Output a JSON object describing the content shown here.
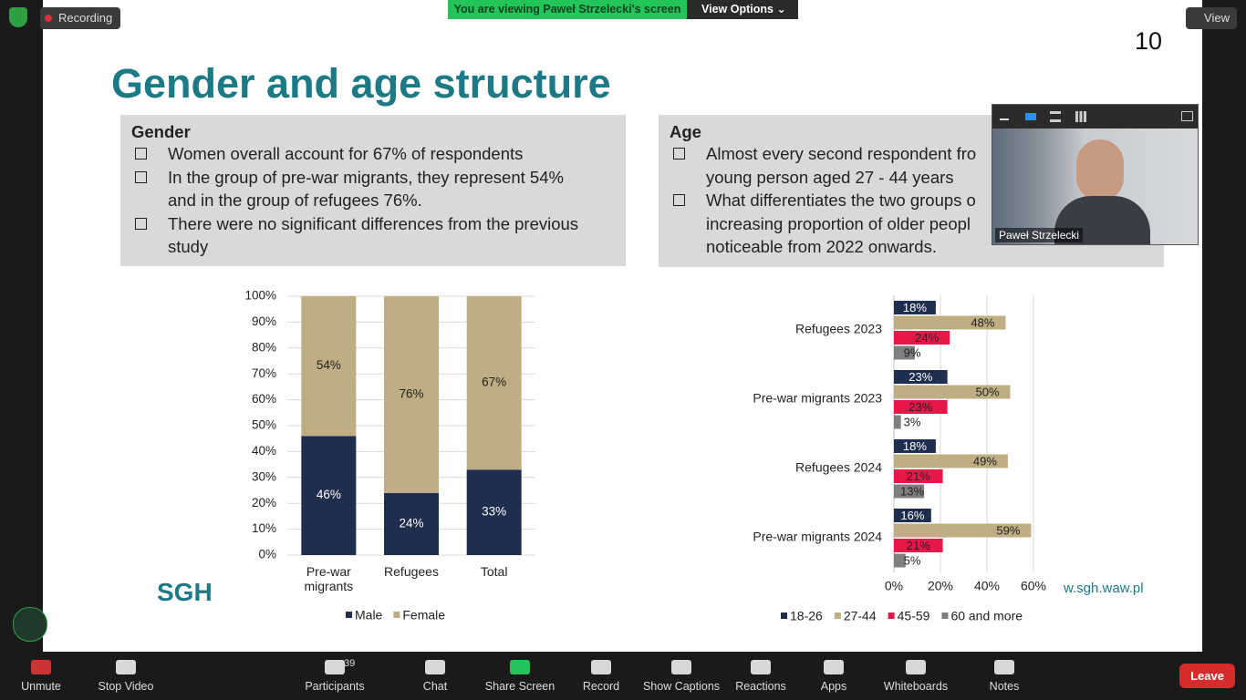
{
  "zoom": {
    "recording": "Recording",
    "banner": "You are viewing Paweł Strzelecki's screen",
    "view_options": "View Options",
    "view": "View",
    "participant_name": "Paweł Strzelecki",
    "participants_count": 39,
    "toolbar": [
      "Unmute",
      "Stop Video",
      "Participants",
      "Chat",
      "Share Screen",
      "Record",
      "Show Captions",
      "Reactions",
      "Apps",
      "Whiteboards",
      "Notes"
    ],
    "leave": "Leave"
  },
  "slide": {
    "page_number": 10,
    "title": "Gender and age structure",
    "gender": {
      "heading": "Gender",
      "bullets": [
        [
          "Women overall account for 67% of respondents"
        ],
        [
          "In the group of pre-war migrants, they represent 54%",
          "and in the group of refugees 76%."
        ],
        [
          "There were no significant differences from the previous",
          "study"
        ]
      ]
    },
    "age": {
      "heading": "Age",
      "bullets": [
        [
          "Almost every second respondent fro",
          "young person aged 27 - 44 years"
        ],
        [
          "What differentiates the two groups o",
          "increasing proportion of older peopl",
          "noticeable from 2022 onwards."
        ]
      ]
    },
    "logo": "SGH",
    "url": "w.sgh.waw.pl"
  },
  "chart_data": [
    {
      "type": "stacked_bar",
      "categories": [
        "Pre-war migrants",
        "Refugees",
        "Total"
      ],
      "series": [
        {
          "name": "Male",
          "color": "#1f2d4e",
          "values": [
            46,
            24,
            33
          ],
          "value_labels": [
            "46%",
            "24%",
            "33%"
          ]
        },
        {
          "name": "Female",
          "color": "#bfad83",
          "values": [
            54,
            76,
            67
          ],
          "value_labels": [
            "54%",
            "76%",
            "67%"
          ]
        }
      ],
      "ylim": [
        0,
        100
      ],
      "yticks": [
        {
          "value": 0,
          "label": "0%"
        },
        {
          "value": 10,
          "label": "10%"
        },
        {
          "value": 20,
          "label": "20%"
        },
        {
          "value": 30,
          "label": "30%"
        },
        {
          "value": 40,
          "label": "40%"
        },
        {
          "value": 50,
          "label": "50%"
        },
        {
          "value": 60,
          "label": "60%"
        },
        {
          "value": 70,
          "label": "70%"
        },
        {
          "value": 80,
          "label": "80%"
        },
        {
          "value": 90,
          "label": "90%"
        },
        {
          "value": 100,
          "label": "100%"
        }
      ],
      "grid": true,
      "legend": "bottom"
    },
    {
      "type": "hbar",
      "categories": [
        "Refugees 2023",
        "Pre-war migrants 2023",
        "Refugees 2024",
        "Pre-war migrants  2024"
      ],
      "series": [
        {
          "name": "18-26",
          "color": "#1f2d4e",
          "values": [
            18,
            23,
            18,
            16
          ],
          "value_labels": [
            "18%",
            "23%",
            "18%",
            "16%"
          ]
        },
        {
          "name": "27-44",
          "color": "#bfad83",
          "values": [
            48,
            50,
            49,
            59
          ],
          "value_labels": [
            "48%",
            "50%",
            "49%",
            "59%"
          ]
        },
        {
          "name": "45-59",
          "color": "#e8174a",
          "values": [
            24,
            23,
            21,
            21
          ],
          "value_labels": [
            "24%",
            "23%",
            "21%",
            "21%"
          ]
        },
        {
          "name": "60 and more",
          "color": "#7f7f7f",
          "values": [
            9,
            3,
            13,
            5
          ],
          "value_labels": [
            "9%",
            "3%",
            "13%",
            "5%"
          ]
        }
      ],
      "xlim": [
        0,
        60
      ],
      "xticks": [
        {
          "value": 0,
          "label": "0%"
        },
        {
          "value": 20,
          "label": "20%"
        },
        {
          "value": 40,
          "label": "40%"
        },
        {
          "value": 60,
          "label": "60%"
        }
      ],
      "grid": true,
      "legend": "bottom"
    }
  ]
}
